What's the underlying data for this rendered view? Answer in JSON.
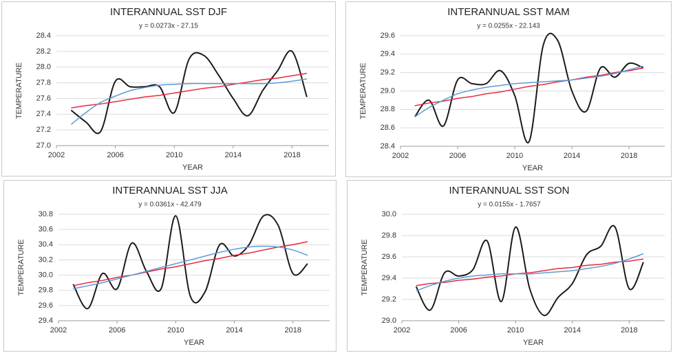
{
  "chart_data": [
    {
      "type": "line",
      "title": "INTERANNUAL SST DJF",
      "subtitle": "y = 0.0273x - 27.15",
      "xlabel": "YEAR",
      "ylabel": "TEMPERATURE",
      "x": [
        2003,
        2004,
        2005,
        2006,
        2007,
        2008,
        2009,
        2010,
        2011,
        2012,
        2013,
        2014,
        2015,
        2016,
        2017,
        2018,
        2019
      ],
      "xlim": [
        2002,
        2020.5
      ],
      "xticks": [
        2002,
        2006,
        2010,
        2014,
        2018
      ],
      "ylim": [
        27.0,
        28.4
      ],
      "yticks": [
        {
          "value": 27.0,
          "label": "27.0"
        },
        27.2,
        27.4,
        27.6,
        27.8,
        {
          "value": 28.0,
          "label": "28.0"
        },
        28.2,
        28.4
      ],
      "grid": true,
      "series": [
        {
          "color": "#1a1a1a",
          "smooth": true,
          "values": [
            27.45,
            27.3,
            27.18,
            27.82,
            27.75,
            27.75,
            27.75,
            27.42,
            28.1,
            28.15,
            27.9,
            27.6,
            27.38,
            27.7,
            27.95,
            28.2,
            27.62
          ]
        },
        {
          "color": "#e8283c",
          "values": [
            27.48,
            27.51,
            27.53,
            27.56,
            27.59,
            27.62,
            27.64,
            27.67,
            27.7,
            27.73,
            27.75,
            27.78,
            27.81,
            27.84,
            27.86,
            27.89,
            27.92
          ]
        },
        {
          "color": "#5b9bd5",
          "smooth": true,
          "values": [
            27.27,
            27.42,
            27.55,
            27.63,
            27.7,
            27.74,
            27.77,
            27.78,
            27.79,
            27.79,
            27.79,
            27.79,
            27.79,
            27.79,
            27.8,
            27.82,
            27.85
          ]
        }
      ]
    },
    {
      "type": "line",
      "title": "INTERANNUAL SST MAM",
      "subtitle": "y = 0.0255x - 22.143",
      "xlabel": "YEAR",
      "ylabel": "TEMPERATURE",
      "x": [
        2003,
        2004,
        2005,
        2006,
        2007,
        2008,
        2009,
        2010,
        2011,
        2012,
        2013,
        2014,
        2015,
        2016,
        2017,
        2018,
        2019
      ],
      "xlim": [
        2002,
        2020.5
      ],
      "xticks": [
        2002,
        2006,
        2010,
        2014,
        2018
      ],
      "ylim": [
        28.4,
        29.6
      ],
      "yticks": [
        28.4,
        28.6,
        28.8,
        {
          "value": 29.0,
          "label": "29.0"
        },
        29.2,
        29.4,
        29.6
      ],
      "grid": true,
      "series": [
        {
          "color": "#1a1a1a",
          "smooth": true,
          "values": [
            28.72,
            28.9,
            28.62,
            29.12,
            29.08,
            29.08,
            29.22,
            28.95,
            28.45,
            29.5,
            29.55,
            29.0,
            28.78,
            29.25,
            29.15,
            29.3,
            29.25
          ]
        },
        {
          "color": "#e8283c",
          "values": [
            28.84,
            28.87,
            28.89,
            28.92,
            28.94,
            28.97,
            28.99,
            29.02,
            29.05,
            29.07,
            29.1,
            29.12,
            29.15,
            29.17,
            29.2,
            29.22,
            29.25
          ]
        },
        {
          "color": "#5b9bd5",
          "smooth": true,
          "values": [
            28.72,
            28.82,
            28.9,
            28.97,
            29.01,
            29.04,
            29.06,
            29.08,
            29.09,
            29.1,
            29.11,
            29.12,
            29.14,
            29.16,
            29.19,
            29.23,
            29.27
          ]
        }
      ]
    },
    {
      "type": "line",
      "title": "INTERANNUAL SST JJA",
      "subtitle": "y = 0.0361x - 42.479",
      "xlabel": "YEAR",
      "ylabel": "TEMPERATURE",
      "x": [
        2003,
        2004,
        2005,
        2006,
        2007,
        2008,
        2009,
        2010,
        2011,
        2012,
        2013,
        2014,
        2015,
        2016,
        2017,
        2018,
        2019
      ],
      "xlim": [
        2002,
        2020.5
      ],
      "xticks": [
        2002,
        2006,
        2010,
        2014,
        2018
      ],
      "ylim": [
        29.4,
        30.8
      ],
      "yticks": [
        29.4,
        29.6,
        29.8,
        {
          "value": 30.0,
          "label": "30.0"
        },
        30.2,
        30.4,
        30.6,
        30.8
      ],
      "grid": true,
      "series": [
        {
          "color": "#1a1a1a",
          "smooth": true,
          "values": [
            29.88,
            29.56,
            30.02,
            29.82,
            30.42,
            30.05,
            29.82,
            30.78,
            29.72,
            29.78,
            30.4,
            30.25,
            30.4,
            30.78,
            30.65,
            30.02,
            30.15
          ]
        },
        {
          "color": "#e8283c",
          "values": [
            29.86,
            29.9,
            29.93,
            29.97,
            30.0,
            30.04,
            30.08,
            30.11,
            30.15,
            30.19,
            30.22,
            30.26,
            30.29,
            30.33,
            30.37,
            30.4,
            30.44
          ]
        },
        {
          "color": "#5b9bd5",
          "smooth": true,
          "values": [
            29.82,
            29.86,
            29.9,
            29.95,
            30.0,
            30.05,
            30.1,
            30.15,
            30.2,
            30.25,
            30.3,
            30.34,
            30.37,
            30.38,
            30.37,
            30.33,
            30.26
          ]
        }
      ]
    },
    {
      "type": "line",
      "title": "INTERANNUAL SST SON",
      "subtitle": "y = 0.0155x - 1.7657",
      "xlabel": "YEAR",
      "ylabel": "TEMPERATURE",
      "x": [
        2003,
        2004,
        2005,
        2006,
        2007,
        2008,
        2009,
        2010,
        2011,
        2012,
        2013,
        2014,
        2015,
        2016,
        2017,
        2018,
        2019
      ],
      "xlim": [
        2002,
        2020.5
      ],
      "xticks": [
        2002,
        2006,
        2010,
        2014,
        2018
      ],
      "ylim": [
        29.0,
        30.0
      ],
      "yticks": [
        {
          "value": 29.0,
          "label": "29.0"
        },
        29.2,
        29.4,
        29.6,
        29.8,
        {
          "value": 30.0,
          "label": "30.0"
        }
      ],
      "grid": true,
      "series": [
        {
          "color": "#1a1a1a",
          "smooth": true,
          "values": [
            29.32,
            29.1,
            29.45,
            29.42,
            29.48,
            29.75,
            29.18,
            29.88,
            29.3,
            29.05,
            29.22,
            29.35,
            29.62,
            29.7,
            29.88,
            29.3,
            29.55
          ]
        },
        {
          "color": "#e8283c",
          "values": [
            29.33,
            29.35,
            29.36,
            29.38,
            29.39,
            29.41,
            29.42,
            29.44,
            29.45,
            29.47,
            29.49,
            29.5,
            29.52,
            29.53,
            29.55,
            29.56,
            29.58
          ]
        },
        {
          "color": "#5b9bd5",
          "smooth": true,
          "values": [
            29.28,
            29.33,
            29.37,
            29.4,
            29.42,
            29.43,
            29.44,
            29.44,
            29.44,
            29.45,
            29.46,
            29.47,
            29.49,
            29.51,
            29.54,
            29.58,
            29.63
          ]
        }
      ]
    }
  ]
}
